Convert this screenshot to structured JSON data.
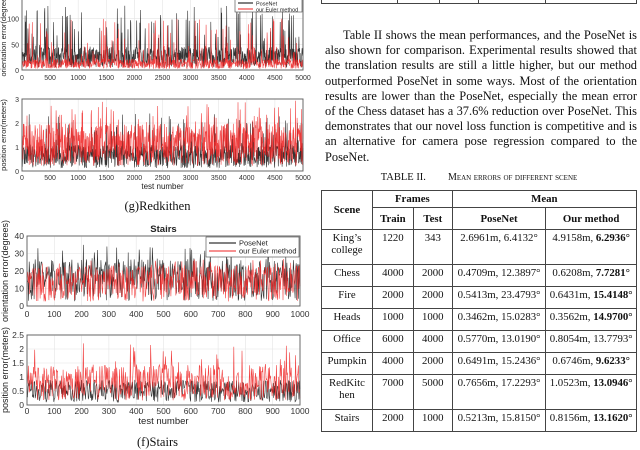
{
  "figures": {
    "redkitchen_caption": "(g)Redkithen",
    "stairs_caption": "(f)Stairs"
  },
  "chart_data": [
    {
      "type": "line",
      "id": "redkitchen-orientation",
      "title": "",
      "xlabel": "",
      "ylabel": "orientation error(degrees)",
      "xlim": [
        0,
        5000
      ],
      "ylim": [
        0,
        140
      ],
      "xticks": [
        "0",
        "500",
        "1000",
        "1500",
        "2000",
        "2500",
        "3000",
        "3500",
        "4000",
        "4500",
        "5000"
      ],
      "yticks": [
        "0",
        "50",
        "100"
      ],
      "ytick_values": [
        0,
        50,
        100
      ],
      "grid": true,
      "legend": "top-right",
      "series": [
        {
          "name": "PoseNet",
          "color": "#000000",
          "n_points": 5000,
          "typical": 25,
          "peak": 125
        },
        {
          "name": "our Euler method",
          "color": "#ee2222",
          "n_points": 5000,
          "typical": 12,
          "peak": 100
        }
      ]
    },
    {
      "type": "line",
      "id": "redkitchen-position",
      "title": "",
      "xlabel": "test number",
      "ylabel": "position error(meters)",
      "xlim": [
        0,
        5000
      ],
      "ylim": [
        0,
        3
      ],
      "xticks": [
        "0",
        "500",
        "1000",
        "1500",
        "2000",
        "2500",
        "3000",
        "3500",
        "4000",
        "4500",
        "5000"
      ],
      "yticks": [
        "0",
        "1",
        "2",
        "3"
      ],
      "ytick_values": [
        0,
        1,
        2,
        3
      ],
      "grid": true,
      "series": [
        {
          "name": "PoseNet",
          "color": "#000000",
          "n_points": 5000,
          "typical": 0.6,
          "peak": 2.4
        },
        {
          "name": "our Euler method",
          "color": "#ee2222",
          "n_points": 5000,
          "typical": 1.1,
          "peak": 2.95
        }
      ]
    },
    {
      "type": "line",
      "id": "stairs-orientation",
      "title": "Stairs",
      "xlabel": "",
      "ylabel": "orientation error(degrees)",
      "xlim": [
        0,
        1000
      ],
      "ylim": [
        0,
        40
      ],
      "xticks": [
        "0",
        "100",
        "200",
        "300",
        "400",
        "500",
        "600",
        "700",
        "800",
        "900",
        "1000"
      ],
      "yticks": [
        "0",
        "10",
        "20",
        "30",
        "40"
      ],
      "ytick_values": [
        0,
        10,
        20,
        30,
        40
      ],
      "grid": true,
      "legend": "top-right",
      "series": [
        {
          "name": "PoseNet",
          "color": "#000000",
          "n_points": 1000,
          "typical": 15,
          "peak": 35
        },
        {
          "name": "our Euler method",
          "color": "#ee2222",
          "n_points": 1000,
          "typical": 13,
          "peak": 27
        }
      ]
    },
    {
      "type": "line",
      "id": "stairs-position",
      "title": "",
      "xlabel": "test number",
      "ylabel": "position error(meters)",
      "xlim": [
        0,
        1000
      ],
      "ylim": [
        0,
        2.5
      ],
      "xticks": [
        "0",
        "100",
        "200",
        "300",
        "400",
        "500",
        "600",
        "700",
        "800",
        "900",
        "1000"
      ],
      "yticks": [
        "0",
        "0.5",
        "1",
        "1.5",
        "2",
        "2.5"
      ],
      "ytick_values": [
        0,
        0.5,
        1,
        1.5,
        2,
        2.5
      ],
      "grid": true,
      "series": [
        {
          "name": "PoseNet",
          "color": "#000000",
          "n_points": 1000,
          "typical": 0.5,
          "peak": 0.9
        },
        {
          "name": "our Euler method",
          "color": "#ee2222",
          "n_points": 1000,
          "typical": 0.8,
          "peak": 2.3
        }
      ]
    }
  ],
  "paragraph": "Table II shows the mean performances, and the PoseNet is also shown for comparison. Experimental results showed that the translation results are still a little higher, but our method outperformed PoseNet in some ways. Most of the orientation results are lower than the PoseNet, especially the mean error of the Chess dataset has a 37.6% reduction over PoseNet. This demonstrates that our novel loss function is competitive and is an alternative for camera pose regression compared to the PoseNet.",
  "table": {
    "label": "TABLE II.",
    "title": "Mean errors of different scene",
    "headers": {
      "scene": "Scene",
      "frames": "Frames",
      "mean": "Mean",
      "train": "Train",
      "test": "Test",
      "posenet": "PoseNet",
      "ours": "Our method"
    },
    "rows": [
      {
        "scene": "King’s college",
        "train": "1220",
        "test": "343",
        "posenet": "2.6961m, 6.4132°",
        "ours_pos": "4.9158m, ",
        "ours_ori": "6.2936°",
        "bold": true
      },
      {
        "scene": "Chess",
        "train": "4000",
        "test": "2000",
        "posenet": "0.4709m, 12.3897°",
        "ours_pos": "0.6208m, ",
        "ours_ori": "7.7281°",
        "bold": true
      },
      {
        "scene": "Fire",
        "train": "2000",
        "test": "2000",
        "posenet": "0.5413m, 23.4793°",
        "ours_pos": "0.6431m, ",
        "ours_ori": "15.4148°",
        "bold": true
      },
      {
        "scene": "Heads",
        "train": "1000",
        "test": "1000",
        "posenet": "0.3462m, 15.0283°",
        "ours_pos": "0.3562m, ",
        "ours_ori": "14.9700°",
        "bold": true
      },
      {
        "scene": "Office",
        "train": "6000",
        "test": "4000",
        "posenet": "0.5770m, 13.0190°",
        "ours_pos": "0.8054m, ",
        "ours_ori": "13.7793°",
        "bold": false
      },
      {
        "scene": "Pumpkin",
        "train": "4000",
        "test": "2000",
        "posenet": "0.6491m, 15.2436°",
        "ours_pos": "0.6746m, ",
        "ours_ori": "9.6233°",
        "bold": true
      },
      {
        "scene": "RedKitc hen",
        "train": "7000",
        "test": "5000",
        "posenet": "0.7656m, 17.2293°",
        "ours_pos": "1.0523m, ",
        "ours_ori": "13.0946°",
        "bold": true
      },
      {
        "scene": "Stairs",
        "train": "2000",
        "test": "1000",
        "posenet": "0.5213m, 15.8150°",
        "ours_pos": "0.8156m, ",
        "ours_ori": "13.1620°",
        "bold": true
      }
    ]
  }
}
